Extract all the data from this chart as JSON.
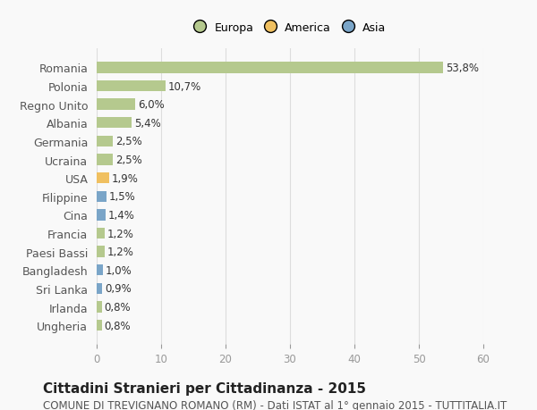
{
  "categories": [
    "Ungheria",
    "Irlanda",
    "Sri Lanka",
    "Bangladesh",
    "Paesi Bassi",
    "Francia",
    "Cina",
    "Filippine",
    "USA",
    "Ucraina",
    "Germania",
    "Albania",
    "Regno Unito",
    "Polonia",
    "Romania"
  ],
  "values": [
    0.8,
    0.8,
    0.9,
    1.0,
    1.2,
    1.2,
    1.4,
    1.5,
    1.9,
    2.5,
    2.5,
    5.4,
    6.0,
    10.7,
    53.8
  ],
  "labels": [
    "0,8%",
    "0,8%",
    "0,9%",
    "1,0%",
    "1,2%",
    "1,2%",
    "1,4%",
    "1,5%",
    "1,9%",
    "2,5%",
    "2,5%",
    "5,4%",
    "6,0%",
    "10,7%",
    "53,8%"
  ],
  "colors": [
    "#b5c98e",
    "#b5c98e",
    "#7aa5c8",
    "#7aa5c8",
    "#b5c98e",
    "#b5c98e",
    "#7aa5c8",
    "#7aa5c8",
    "#f0c060",
    "#b5c98e",
    "#b5c98e",
    "#b5c98e",
    "#b5c98e",
    "#b5c98e",
    "#b5c98e"
  ],
  "legend_labels": [
    "Europa",
    "America",
    "Asia"
  ],
  "legend_colors": [
    "#b5c98e",
    "#f0c060",
    "#7aa5c8"
  ],
  "xlim": [
    0,
    60
  ],
  "xticks": [
    0,
    10,
    20,
    30,
    40,
    50,
    60
  ],
  "title": "Cittadini Stranieri per Cittadinanza - 2015",
  "subtitle": "COMUNE DI TREVIGNANO ROMANO (RM) - Dati ISTAT al 1° gennaio 2015 - TUTTITALIA.IT",
  "bg_color": "#f9f9f9",
  "bar_height": 0.6,
  "label_fontsize": 8.5,
  "title_fontsize": 11,
  "subtitle_fontsize": 8.5
}
